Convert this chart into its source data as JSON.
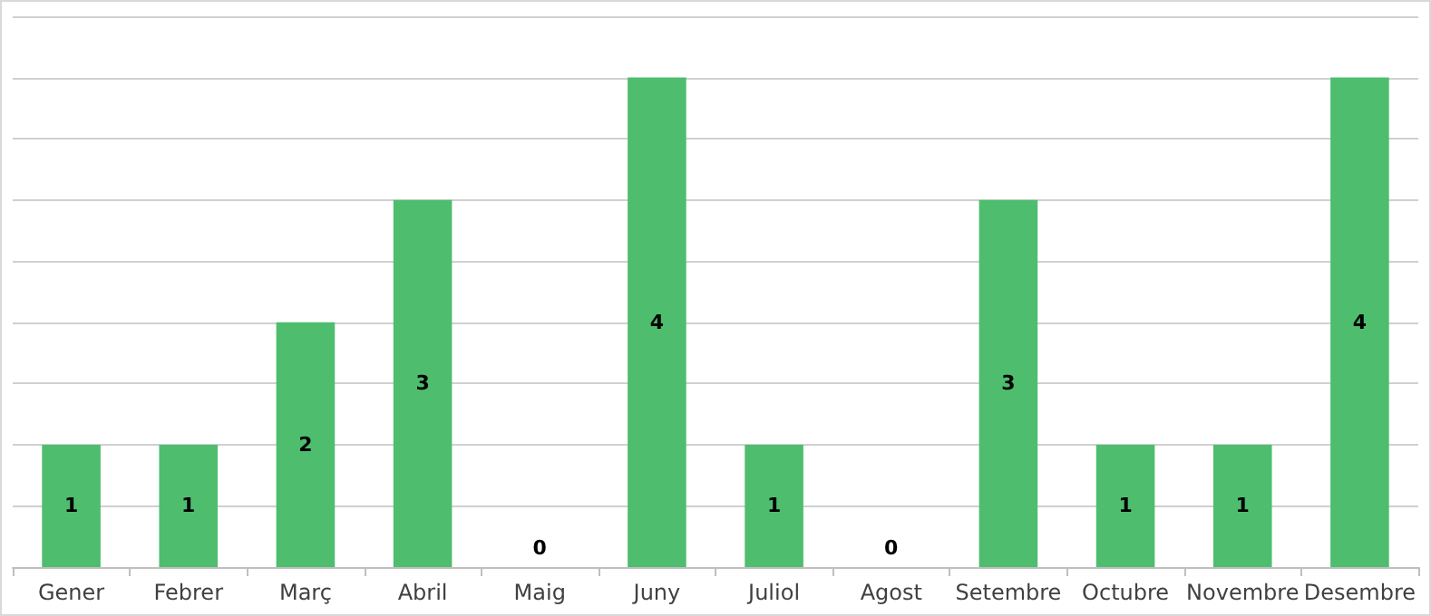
{
  "chart_data": {
    "type": "bar",
    "categories": [
      "Gener",
      "Febrer",
      "Març",
      "Abril",
      "Maig",
      "Juny",
      "Juliol",
      "Agost",
      "Setembre",
      "Octubre",
      "Novembre",
      "Desembre"
    ],
    "values": [
      1,
      1,
      2,
      3,
      0,
      4,
      1,
      0,
      3,
      1,
      1,
      4
    ],
    "color": "#4ebd6e",
    "ylim": [
      0,
      4.5
    ],
    "yticks": [
      {
        "value": 0,
        "label": null
      },
      {
        "value": 0.5,
        "label": null
      },
      {
        "value": 1,
        "label": null
      },
      {
        "value": 1.5,
        "label": null
      },
      {
        "value": 2,
        "label": null
      },
      {
        "value": 2.5,
        "label": null
      },
      {
        "value": 3,
        "label": null
      },
      {
        "value": 3.5,
        "label": null
      },
      {
        "value": 4,
        "label": null
      },
      {
        "value": 4.5,
        "label": null
      }
    ],
    "grid": "y",
    "tick_labels": "x",
    "data_labels": true
  }
}
